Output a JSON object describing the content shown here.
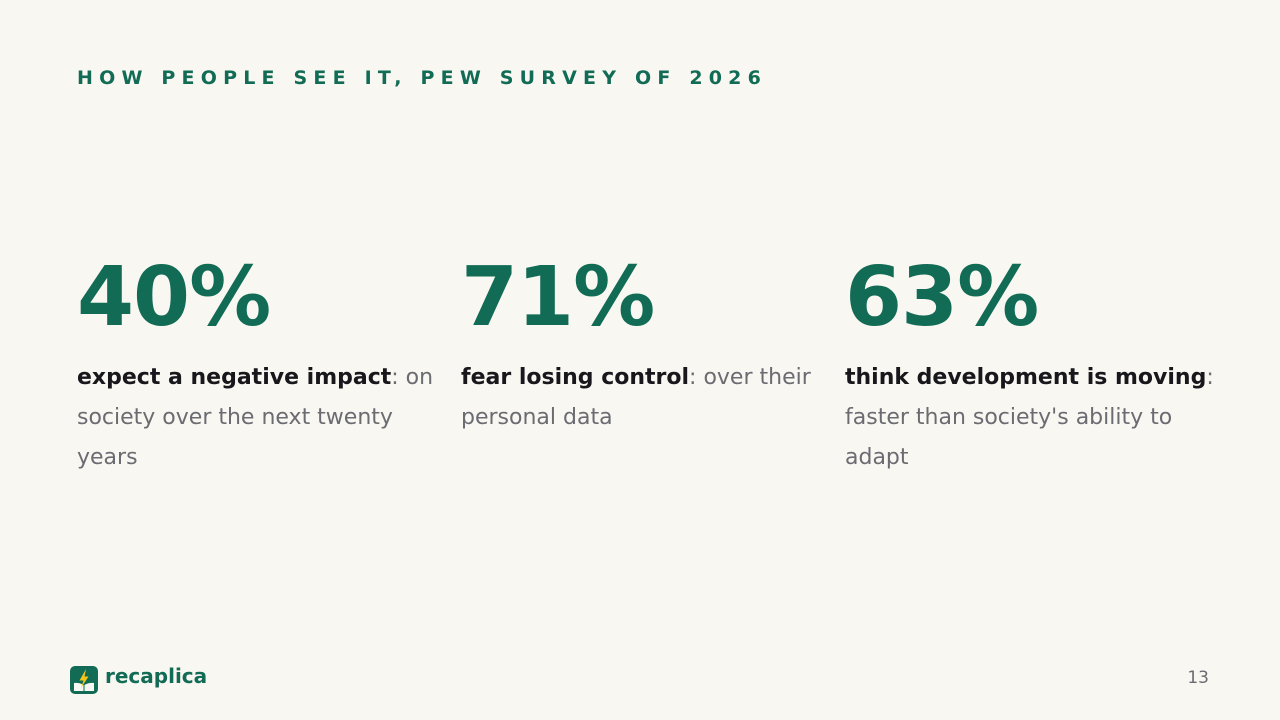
{
  "eyebrow": "HOW PEOPLE SEE IT, PEW SURVEY OF 2026",
  "stats": [
    {
      "value": "40%",
      "lead": "expect a negative impact",
      "rest": ": on society over the next twenty years"
    },
    {
      "value": "71%",
      "lead": "fear losing control",
      "rest": ": over their personal data"
    },
    {
      "value": "63%",
      "lead": "think development is moving",
      "rest": ": faster than society's ability to adapt"
    }
  ],
  "brand": {
    "name": "recaplica",
    "logo_icon": "bolt-book-logo-icon",
    "accent_color": "#116b55",
    "bolt_color": "#f5c518"
  },
  "page_number": "13"
}
